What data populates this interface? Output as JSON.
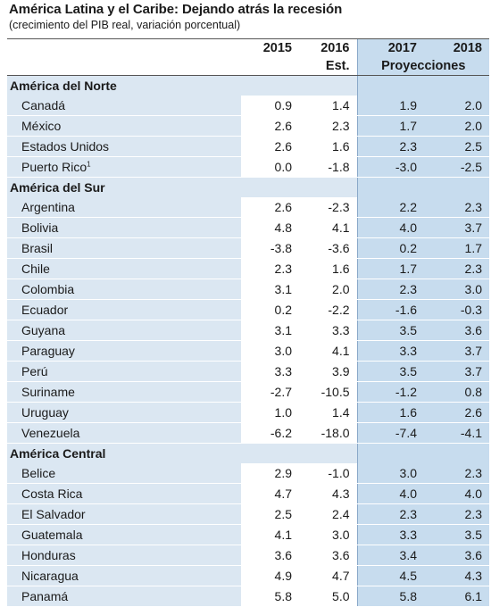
{
  "title": "América Latina y el Caribe: Dejando atrás la recesión",
  "subtitle": "(crecimiento del PIB real, variación porcentual)",
  "header": {
    "years": [
      "2015",
      "2016",
      "2017",
      "2018"
    ],
    "estimate_label": "Est.",
    "projection_label": "Proyecciones"
  },
  "regions": [
    {
      "name": "América del Norte",
      "rows": [
        {
          "name": "Canadá",
          "sup": "",
          "values": [
            "0.9",
            "1.4",
            "1.9",
            "2.0"
          ]
        },
        {
          "name": "México",
          "sup": "",
          "values": [
            "2.6",
            "2.3",
            "1.7",
            "2.0"
          ]
        },
        {
          "name": "Estados Unidos",
          "sup": "",
          "values": [
            "2.6",
            "1.6",
            "2.3",
            "2.5"
          ]
        },
        {
          "name": "Puerto Rico",
          "sup": "1",
          "values": [
            "0.0",
            "-1.8",
            "-3.0",
            "-2.5"
          ]
        }
      ]
    },
    {
      "name": "América del Sur",
      "rows": [
        {
          "name": "Argentina",
          "sup": "",
          "values": [
            "2.6",
            "-2.3",
            "2.2",
            "2.3"
          ]
        },
        {
          "name": "Bolivia",
          "sup": "",
          "values": [
            "4.8",
            "4.1",
            "4.0",
            "3.7"
          ]
        },
        {
          "name": "Brasil",
          "sup": "",
          "values": [
            "-3.8",
            "-3.6",
            "0.2",
            "1.7"
          ]
        },
        {
          "name": "Chile",
          "sup": "",
          "values": [
            "2.3",
            "1.6",
            "1.7",
            "2.3"
          ]
        },
        {
          "name": "Colombia",
          "sup": "",
          "values": [
            "3.1",
            "2.0",
            "2.3",
            "3.0"
          ]
        },
        {
          "name": "Ecuador",
          "sup": "",
          "values": [
            "0.2",
            "-2.2",
            "-1.6",
            "-0.3"
          ]
        },
        {
          "name": "Guyana",
          "sup": "",
          "values": [
            "3.1",
            "3.3",
            "3.5",
            "3.6"
          ]
        },
        {
          "name": "Paraguay",
          "sup": "",
          "values": [
            "3.0",
            "4.1",
            "3.3",
            "3.7"
          ]
        },
        {
          "name": "Perú",
          "sup": "",
          "values": [
            "3.3",
            "3.9",
            "3.5",
            "3.7"
          ]
        },
        {
          "name": "Suriname",
          "sup": "",
          "values": [
            "-2.7",
            "-10.5",
            "-1.2",
            "0.8"
          ]
        },
        {
          "name": "Uruguay",
          "sup": "",
          "values": [
            "1.0",
            "1.4",
            "1.6",
            "2.6"
          ]
        },
        {
          "name": "Venezuela",
          "sup": "",
          "values": [
            "-6.2",
            "-18.0",
            "-7.4",
            "-4.1"
          ]
        }
      ]
    },
    {
      "name": "América Central",
      "rows": [
        {
          "name": "Belice",
          "sup": "",
          "values": [
            "2.9",
            "-1.0",
            "3.0",
            "2.3"
          ]
        },
        {
          "name": "Costa Rica",
          "sup": "",
          "values": [
            "4.7",
            "4.3",
            "4.0",
            "4.0"
          ]
        },
        {
          "name": "El Salvador",
          "sup": "",
          "values": [
            "2.5",
            "2.4",
            "2.3",
            "2.3"
          ]
        },
        {
          "name": "Guatemala",
          "sup": "",
          "values": [
            "4.1",
            "3.0",
            "3.3",
            "3.5"
          ]
        },
        {
          "name": "Honduras",
          "sup": "",
          "values": [
            "3.6",
            "3.6",
            "3.4",
            "3.6"
          ]
        },
        {
          "name": "Nicaragua",
          "sup": "",
          "values": [
            "4.9",
            "4.7",
            "4.5",
            "4.3"
          ]
        },
        {
          "name": "Panamá",
          "sup": "",
          "values": [
            "5.8",
            "5.0",
            "5.8",
            "6.1"
          ]
        }
      ]
    }
  ]
}
